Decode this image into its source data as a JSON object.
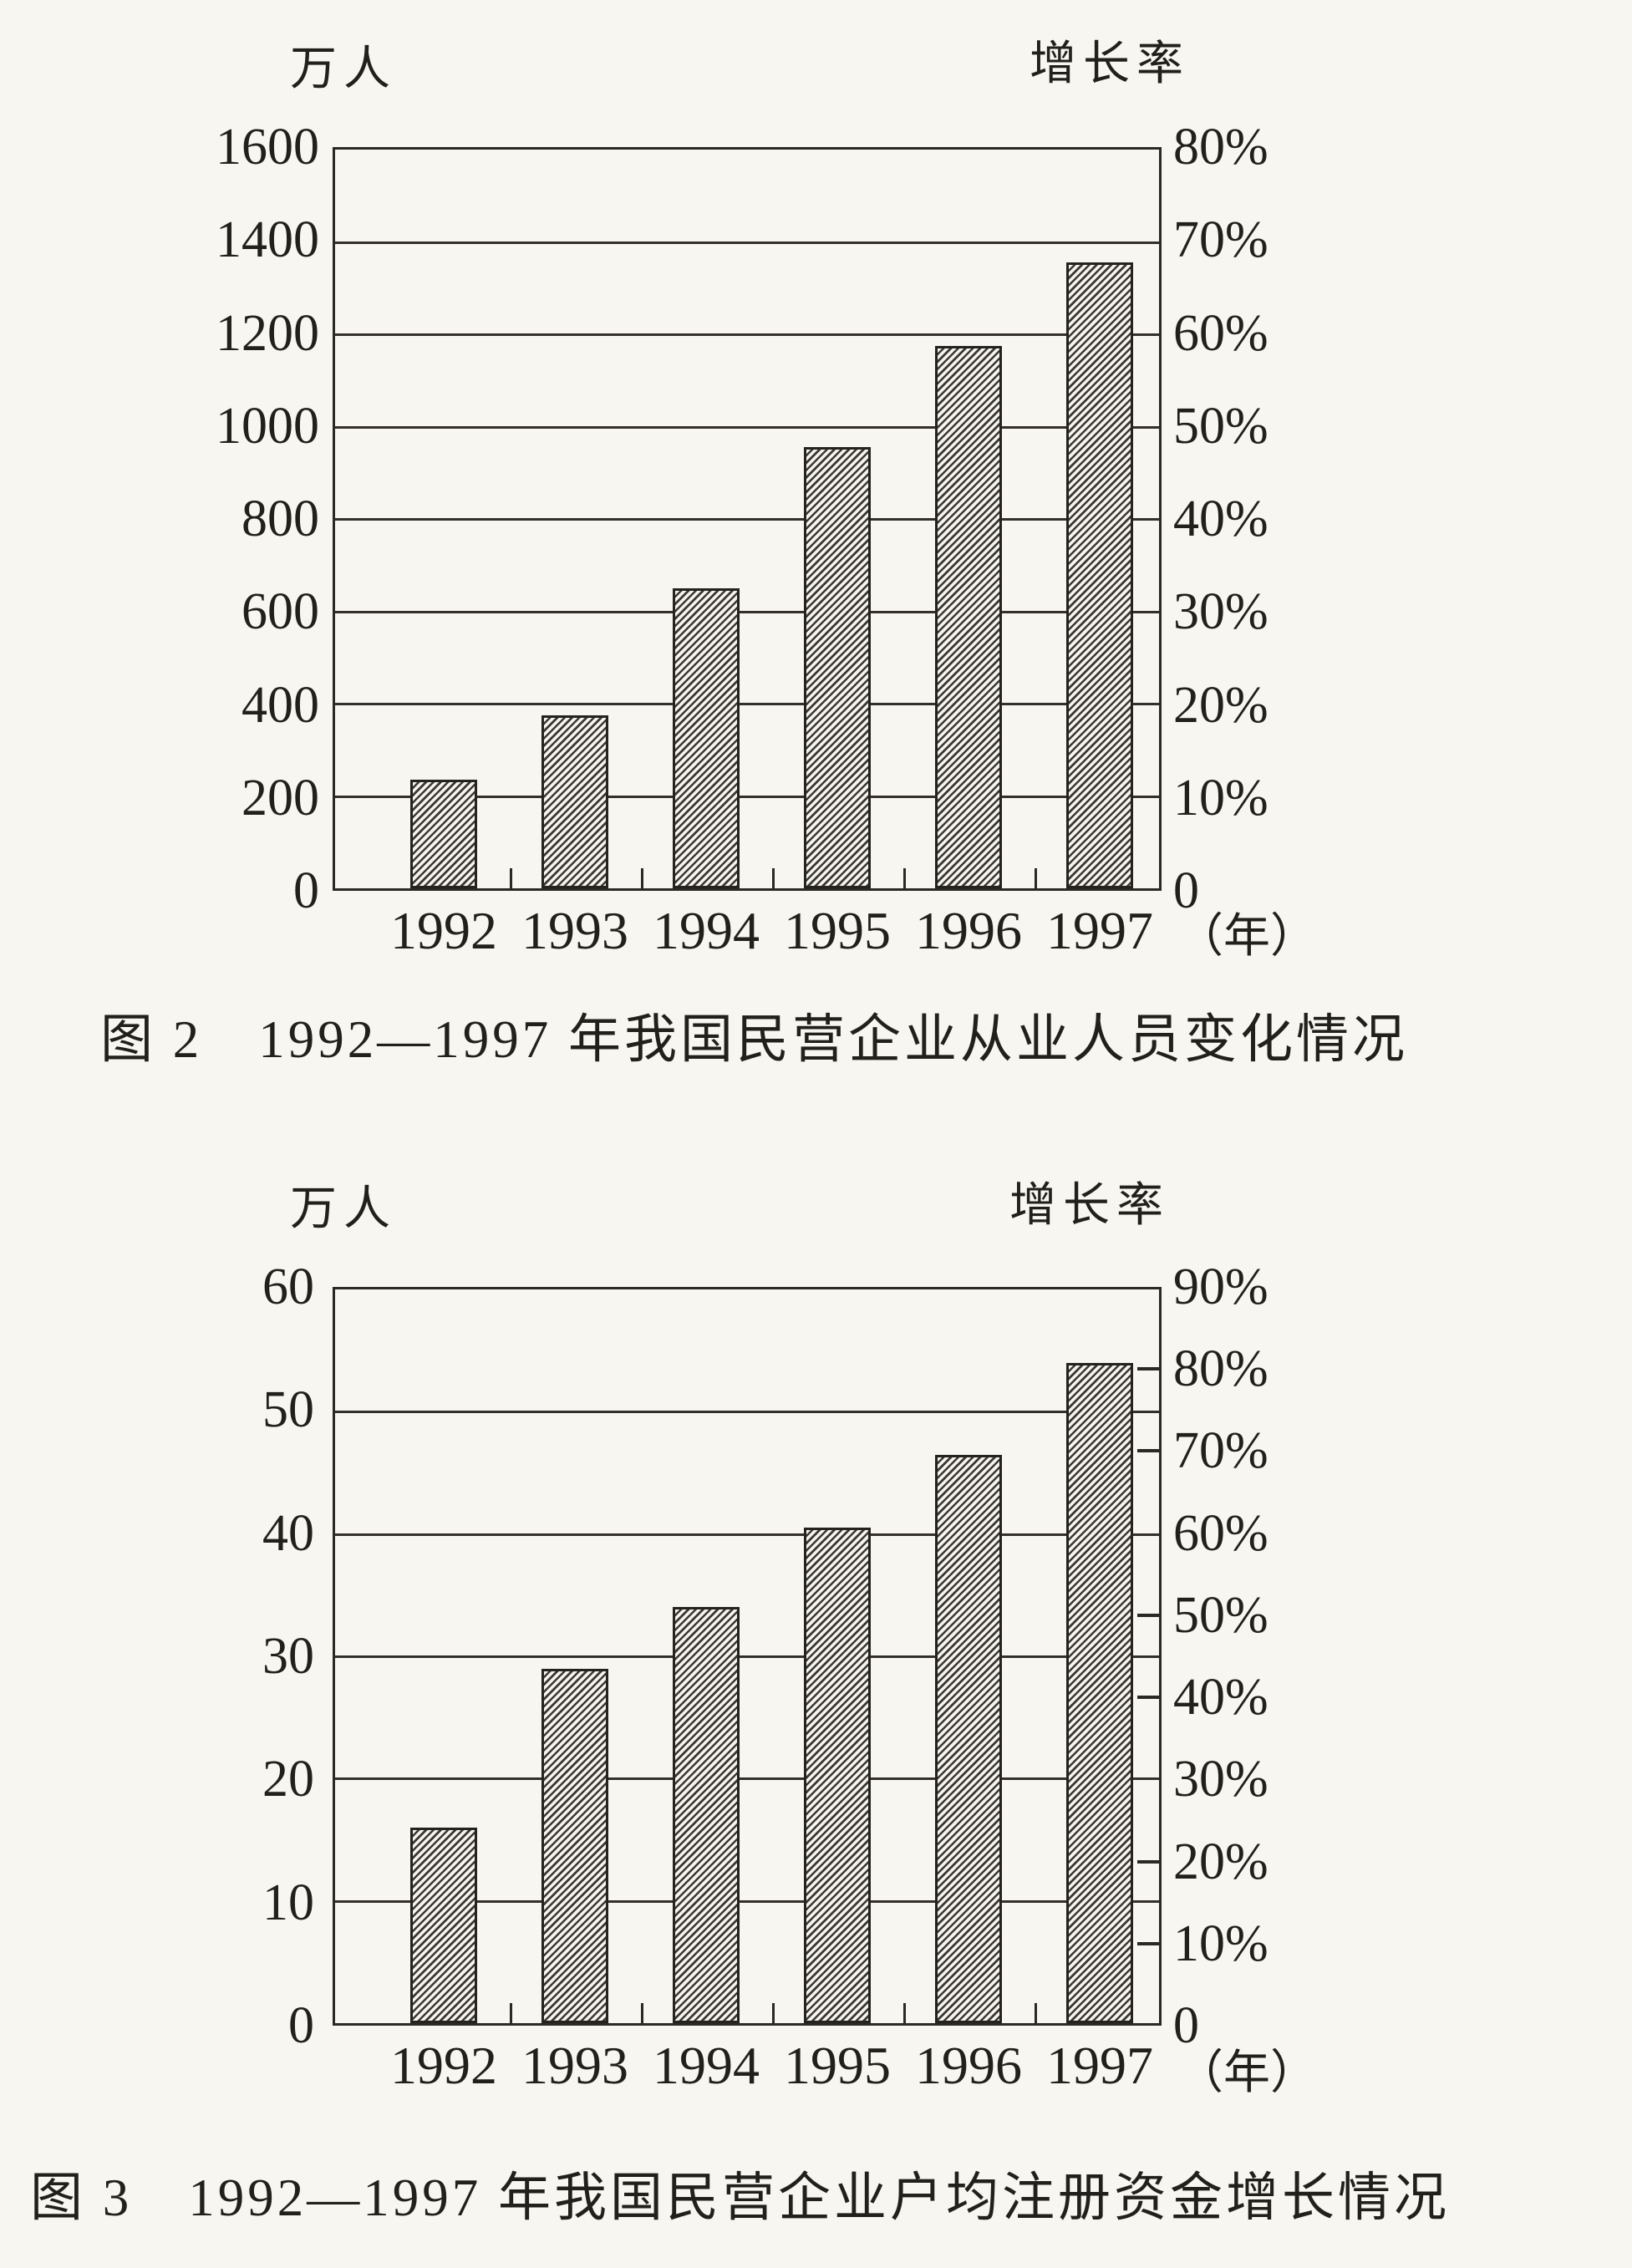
{
  "page": {
    "kind": "scanned-document-with-two-bar-charts",
    "paper_color": "#f8f6f1",
    "ink_color": "#2b2926"
  },
  "chart_data": [
    {
      "type": "bar",
      "figure_label": "图 2",
      "caption": "图 2　1992—1997 年我国民营企业从业人员变化情况",
      "title": "1992—1997 年我国民营企业从业人员变化情况",
      "categories": [
        "1992",
        "1993",
        "1994",
        "1995",
        "1996",
        "1997"
      ],
      "values": [
        235,
        375,
        650,
        955,
        1175,
        1355
      ],
      "x_axis_unit": "（年）",
      "left_axis": {
        "unit": "万人",
        "min": 0,
        "max": 1600,
        "step": 200,
        "ticks": [
          "1600",
          "1400",
          "1200",
          "1000",
          "800",
          "600",
          "400",
          "200",
          "0"
        ]
      },
      "right_axis": {
        "unit": "增长率",
        "min": "0",
        "max": "80%",
        "ticks": [
          "80%",
          "70%",
          "60%",
          "50%",
          "40%",
          "30%",
          "20%",
          "10%",
          "0"
        ]
      },
      "grid": true,
      "legend": "none",
      "bar_style": "diagonal-hatch"
    },
    {
      "type": "bar",
      "figure_label": "图 3",
      "caption": "图 3　1992—1997 年我国民营企业户均注册资金增长情况",
      "title": "1992—1997 年我国民营企业户均注册资金增长情况",
      "categories": [
        "1992",
        "1993",
        "1994",
        "1995",
        "1996",
        "1997"
      ],
      "values": [
        16,
        29,
        34,
        40.5,
        46.5,
        54
      ],
      "x_axis_unit": "（年）",
      "left_axis": {
        "unit": "万人",
        "min": 0,
        "max": 60,
        "step": 10,
        "ticks": [
          "60",
          "50",
          "40",
          "30",
          "20",
          "10",
          "0"
        ]
      },
      "right_axis": {
        "unit": "增长率",
        "min": "0",
        "max": "90%",
        "ticks": [
          "90%",
          "80%",
          "70%",
          "60%",
          "50%",
          "40%",
          "30%",
          "20%",
          "10%",
          "0"
        ]
      },
      "grid": true,
      "legend": "none",
      "bar_style": "diagonal-hatch"
    }
  ]
}
